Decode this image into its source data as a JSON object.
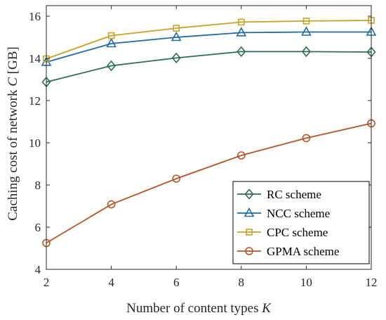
{
  "chart_data": {
    "type": "line",
    "x": [
      2,
      4,
      6,
      8,
      10,
      12
    ],
    "xlabel": "Number of content types",
    "xlabel_symbol": "K",
    "ylabel": "Caching cost of network",
    "ylabel_symbol": "C",
    "ylabel_unit": "[GB]",
    "xlim": [
      2,
      12
    ],
    "ylim": [
      4,
      16.5
    ],
    "xticks": [
      2,
      4,
      6,
      8,
      10,
      12
    ],
    "yticks": [
      4,
      6,
      8,
      10,
      12,
      14,
      16
    ],
    "grid": false,
    "legend_position": "bottom-right",
    "series": [
      {
        "name": "RC scheme",
        "marker": "diamond",
        "color": "#2e6f50",
        "values": [
          12.88,
          13.65,
          14.02,
          14.32,
          14.32,
          14.3
        ]
      },
      {
        "name": "NCC scheme",
        "marker": "triangle",
        "color": "#1f6aa8",
        "values": [
          13.82,
          14.7,
          15.0,
          15.22,
          15.25,
          15.25
        ]
      },
      {
        "name": "CPC scheme",
        "marker": "square",
        "color": "#c9a227",
        "values": [
          13.98,
          15.08,
          15.43,
          15.72,
          15.77,
          15.8
        ]
      },
      {
        "name": "GPMA scheme",
        "marker": "circle",
        "color": "#b5542b",
        "values": [
          5.25,
          7.08,
          8.3,
          9.4,
          10.22,
          10.92
        ]
      }
    ]
  }
}
